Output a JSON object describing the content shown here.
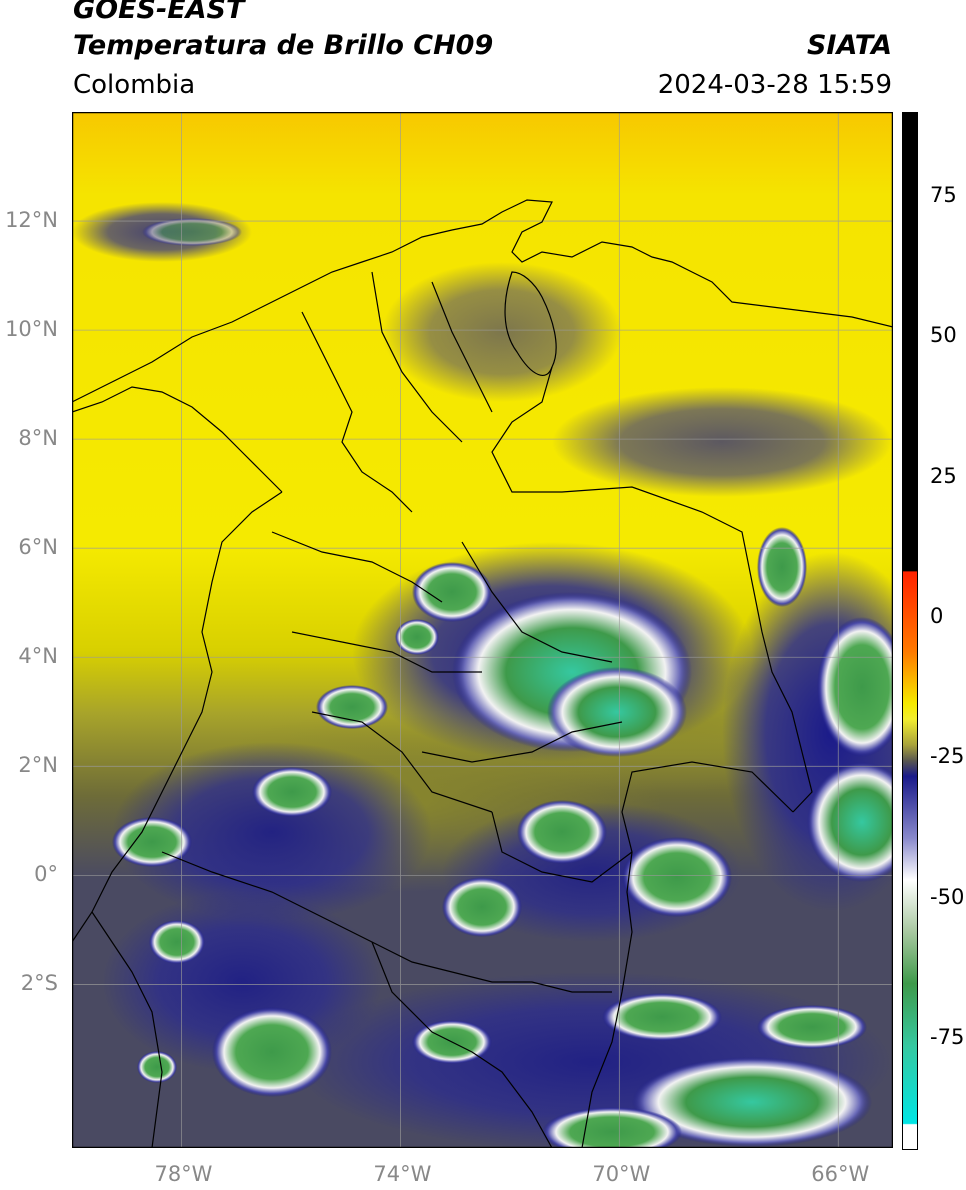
{
  "header": {
    "satellite": "GOES-EAST",
    "product": "Temperatura de Brillo CH09",
    "region": "Colombia",
    "source": "SIATA",
    "timestamp": "2024-03-28 15:59"
  },
  "map": {
    "lon_range": [
      -80,
      -65
    ],
    "lat_range": [
      -5,
      14
    ],
    "lat_ticks": [
      {
        "value": 12,
        "label": "12°N"
      },
      {
        "value": 10,
        "label": "10°N"
      },
      {
        "value": 8,
        "label": "8°N"
      },
      {
        "value": 6,
        "label": "6°N"
      },
      {
        "value": 4,
        "label": "4°N"
      },
      {
        "value": 2,
        "label": "2°N"
      },
      {
        "value": 0,
        "label": "0°"
      },
      {
        "value": -2,
        "label": "2°S"
      }
    ],
    "lon_ticks": [
      {
        "value": -78,
        "label": "78°W"
      },
      {
        "value": -74,
        "label": "74°W"
      },
      {
        "value": -70,
        "label": "70°W"
      },
      {
        "value": -66,
        "label": "66°W"
      }
    ],
    "colors": {
      "yellow": "#f5ea00",
      "olive": "#8c8a2c",
      "slate": "#44466a",
      "navy": "#1a1a8a",
      "white": "#f2f2f2",
      "green": "#3e9a4a",
      "teal": "#35c8a0",
      "border": "#000000",
      "grid": "#9a9a9a"
    }
  },
  "colorbar": {
    "range": [
      -95,
      90
    ],
    "ticks": [
      {
        "value": 75,
        "label": "75"
      },
      {
        "value": 50,
        "label": "50"
      },
      {
        "value": 25,
        "label": "25"
      },
      {
        "value": 0,
        "label": "0"
      },
      {
        "value": -25,
        "label": "-25"
      },
      {
        "value": -50,
        "label": "-50"
      },
      {
        "value": -75,
        "label": "-75"
      }
    ]
  }
}
